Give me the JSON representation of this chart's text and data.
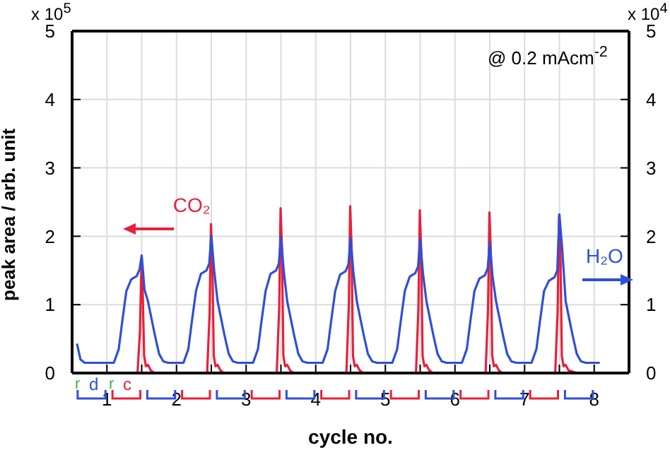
{
  "chart_data": {
    "type": "line",
    "xlabel": "cycle no.",
    "ylabel": "peak area / arb. unit",
    "annotations": [
      "x 10$^{5}$",
      "x 10$^{4}$",
      "@ 0.2 mAcm$^{-2}$",
      "r",
      "d",
      "r",
      "c"
    ],
    "xlim": [
      0.5,
      8.5
    ],
    "xticks": [
      1,
      {
        "value": 1.5,
        "label": null
      },
      2,
      {
        "value": 2.5,
        "label": null
      },
      3,
      {
        "value": 3.5,
        "label": null
      },
      4,
      {
        "value": 4.5,
        "label": null
      },
      5,
      {
        "value": 5.5,
        "label": null
      },
      6,
      {
        "value": 6.5,
        "label": null
      },
      7,
      {
        "value": 7.5,
        "label": null
      },
      8
    ],
    "ylim": [
      0,
      5
    ],
    "yticks": [
      0,
      1,
      2,
      3,
      4,
      5
    ],
    "y2lim": [
      0,
      5
    ],
    "y2ticks": [
      0,
      1,
      2,
      3,
      4,
      5
    ],
    "grid": true,
    "legend": false,
    "series": [
      {
        "name": "CO₂",
        "color": "#e8203a",
        "axis": "y",
        "x": [
          1.4,
          1.44,
          1.475,
          1.495,
          1.515,
          1.535,
          1.56,
          1.59,
          1.63,
          1.68,
          2.44,
          2.475,
          2.495,
          2.515,
          2.535,
          2.56,
          2.59,
          2.63,
          2.68,
          3.44,
          3.475,
          3.495,
          3.515,
          3.535,
          3.56,
          3.59,
          3.63,
          3.68,
          4.44,
          4.475,
          4.495,
          4.515,
          4.535,
          4.56,
          4.59,
          4.63,
          4.68,
          5.44,
          5.475,
          5.495,
          5.515,
          5.535,
          5.56,
          5.59,
          5.63,
          5.68,
          6.44,
          6.475,
          6.495,
          6.515,
          6.535,
          6.56,
          6.59,
          6.63,
          6.68,
          7.44,
          7.475,
          7.495,
          7.515,
          7.535,
          7.56,
          7.59,
          7.63,
          7.75
        ],
        "values": [
          0,
          0,
          0.62,
          1.55,
          1.16,
          0.25,
          0.1,
          0.12,
          0.04,
          0,
          0,
          0.87,
          2.18,
          1.64,
          0.25,
          0.1,
          0.12,
          0.04,
          0,
          0,
          0.96,
          2.41,
          1.81,
          0.25,
          0.1,
          0.12,
          0.04,
          0,
          0,
          0.98,
          2.44,
          1.83,
          0.25,
          0.1,
          0.12,
          0.04,
          0,
          0,
          0.95,
          2.38,
          1.79,
          0.25,
          0.1,
          0.12,
          0.04,
          0,
          0,
          0.94,
          2.35,
          1.76,
          0.25,
          0.1,
          0.12,
          0.04,
          0,
          0,
          0.92,
          2.3,
          1.73,
          0.25,
          0.1,
          0.12,
          0.04,
          0
        ]
      },
      {
        "name": "H₂O",
        "color": "#2f4fd8",
        "axis": "y2",
        "x": [
          0.57,
          0.62,
          0.68,
          1.1,
          1.17,
          1.22,
          1.28,
          1.35,
          1.43,
          1.47,
          1.5,
          1.54,
          1.59,
          1.64,
          1.69,
          1.75,
          1.81,
          1.88,
          2.1,
          2.17,
          2.22,
          2.28,
          2.35,
          2.43,
          2.47,
          2.5,
          2.54,
          2.59,
          2.64,
          2.69,
          2.75,
          2.81,
          2.88,
          3.1,
          3.17,
          3.22,
          3.28,
          3.35,
          3.43,
          3.47,
          3.5,
          3.54,
          3.59,
          3.64,
          3.69,
          3.75,
          3.81,
          3.88,
          4.1,
          4.17,
          4.22,
          4.28,
          4.35,
          4.43,
          4.47,
          4.5,
          4.54,
          4.59,
          4.64,
          4.69,
          4.75,
          4.81,
          4.88,
          5.1,
          5.17,
          5.22,
          5.28,
          5.35,
          5.43,
          5.47,
          5.5,
          5.54,
          5.59,
          5.64,
          5.69,
          5.75,
          5.81,
          5.88,
          6.1,
          6.17,
          6.22,
          6.28,
          6.35,
          6.43,
          6.47,
          6.5,
          6.54,
          6.59,
          6.64,
          6.69,
          6.75,
          6.81,
          6.88,
          7.1,
          7.17,
          7.22,
          7.28,
          7.35,
          7.43,
          7.47,
          7.5,
          7.54,
          7.59,
          7.64,
          7.69,
          7.75,
          7.81,
          7.88,
          8.08
        ],
        "values": [
          0.43,
          0.2,
          0.15,
          0.15,
          0.35,
          0.75,
          1.2,
          1.37,
          1.42,
          1.52,
          1.72,
          1.22,
          1.05,
          0.8,
          0.55,
          0.28,
          0.17,
          0.15,
          0.15,
          0.35,
          0.75,
          1.2,
          1.45,
          1.5,
          1.6,
          2.01,
          1.51,
          1.05,
          0.8,
          0.55,
          0.28,
          0.17,
          0.15,
          0.15,
          0.35,
          0.75,
          1.2,
          1.45,
          1.5,
          1.6,
          2.0,
          1.5,
          1.05,
          0.8,
          0.55,
          0.28,
          0.17,
          0.15,
          0.15,
          0.35,
          0.75,
          1.2,
          1.44,
          1.49,
          1.59,
          1.98,
          1.48,
          1.05,
          0.8,
          0.55,
          0.28,
          0.17,
          0.15,
          0.15,
          0.35,
          0.75,
          1.2,
          1.41,
          1.46,
          1.56,
          1.96,
          1.46,
          1.05,
          0.8,
          0.55,
          0.28,
          0.17,
          0.15,
          0.15,
          0.35,
          0.75,
          1.2,
          1.38,
          1.43,
          1.53,
          1.91,
          1.41,
          1.05,
          0.8,
          0.55,
          0.28,
          0.17,
          0.15,
          0.15,
          0.35,
          0.75,
          1.2,
          1.35,
          1.4,
          1.5,
          2.32,
          1.82,
          1.05,
          0.8,
          0.55,
          0.28,
          0.17,
          0.15,
          0.15
        ]
      }
    ]
  }
}
